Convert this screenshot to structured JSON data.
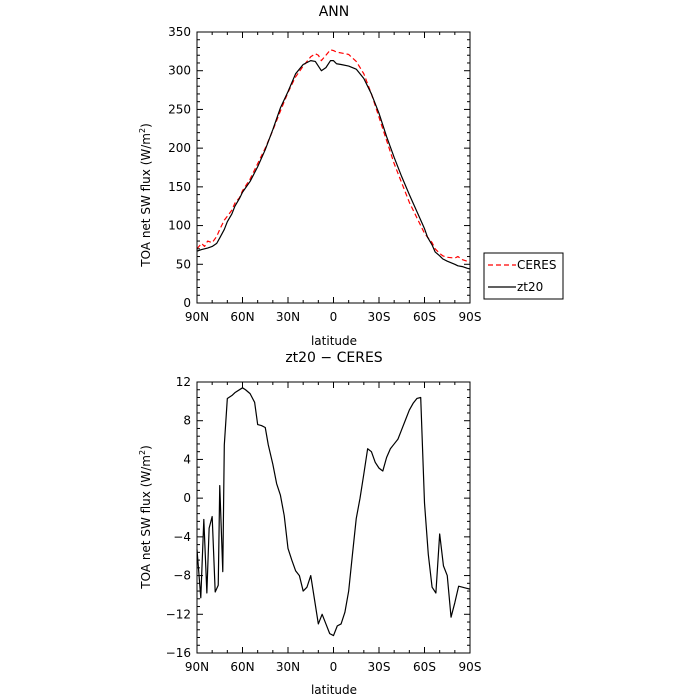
{
  "chart_data": [
    {
      "type": "line",
      "title": "ANN",
      "xlabel": "latitude",
      "ylabel": "TOA net SW flux (W/m²)",
      "xlim": [
        90,
        -90
      ],
      "ylim": [
        0,
        350
      ],
      "xticks": [
        90,
        60,
        30,
        0,
        -30,
        -60,
        -90
      ],
      "xticklabels": [
        "90N",
        "60N",
        "30N",
        "0",
        "30S",
        "60S",
        "90S"
      ],
      "yticks": [
        0,
        50,
        100,
        150,
        200,
        250,
        300,
        350
      ],
      "yticklabels": [
        "0",
        "50",
        "100",
        "150",
        "200",
        "250",
        "300",
        "350"
      ],
      "legend": {
        "position": "right"
      },
      "series": [
        {
          "name": "CERES",
          "color": "#ff0000",
          "dash": "dashed",
          "x": [
            90,
            87,
            85,
            83,
            80,
            77,
            75,
            72,
            70,
            67,
            65,
            62,
            60,
            55,
            50,
            45,
            40,
            35,
            30,
            25,
            20,
            15,
            12,
            10,
            8,
            5,
            2,
            0,
            -2,
            -5,
            -10,
            -15,
            -20,
            -25,
            -30,
            -35,
            -40,
            -45,
            -50,
            -55,
            -60,
            -62,
            -65,
            -67,
            -70,
            -72,
            -75,
            -80,
            -82,
            -85,
            -88,
            -90
          ],
          "y": [
            70,
            77,
            73,
            80,
            78,
            86,
            95,
            107,
            112,
            120,
            129,
            136,
            145,
            160,
            180,
            200,
            223,
            248,
            272,
            292,
            306,
            318,
            322,
            320,
            313,
            320,
            327,
            326,
            324,
            323,
            321,
            312,
            296,
            270,
            240,
            210,
            180,
            155,
            130,
            110,
            90,
            85,
            78,
            70,
            64,
            61,
            59,
            58,
            60,
            56,
            54,
            52
          ]
        },
        {
          "name": "zt20",
          "color": "#000000",
          "dash": "solid",
          "x": [
            90,
            87,
            85,
            83,
            80,
            77,
            75,
            72,
            70,
            67,
            65,
            62,
            60,
            55,
            50,
            45,
            40,
            35,
            30,
            25,
            20,
            15,
            12,
            10,
            8,
            5,
            2,
            0,
            -2,
            -5,
            -10,
            -15,
            -20,
            -25,
            -30,
            -35,
            -40,
            -45,
            -50,
            -55,
            -60,
            -62,
            -65,
            -67,
            -70,
            -72,
            -75,
            -80,
            -82,
            -85,
            -88,
            -90
          ],
          "y": [
            67,
            69,
            70,
            71,
            73,
            77,
            84,
            95,
            105,
            115,
            125,
            135,
            143,
            157,
            176,
            198,
            224,
            252,
            273,
            296,
            308,
            313,
            312,
            306,
            300,
            304,
            313,
            313,
            309,
            308,
            306,
            302,
            290,
            270,
            245,
            215,
            188,
            163,
            140,
            118,
            96,
            85,
            75,
            66,
            61,
            57,
            54,
            50,
            48,
            47,
            45,
            44
          ]
        }
      ]
    },
    {
      "type": "line",
      "title": "zt20 − CERES",
      "xlabel": "latitude",
      "ylabel": "TOA net SW flux (W/m²)",
      "xlim": [
        90,
        -90
      ],
      "ylim": [
        -16,
        12
      ],
      "xticks": [
        90,
        60,
        30,
        0,
        -30,
        -60,
        -90
      ],
      "xticklabels": [
        "90N",
        "60N",
        "30N",
        "0",
        "30S",
        "60S",
        "90S"
      ],
      "yticks": [
        -16,
        -12,
        -8,
        -4,
        0,
        4,
        8,
        12
      ],
      "yticklabels": [
        "−16",
        "−12",
        "−8",
        "−4",
        "0",
        "4",
        "8",
        "12"
      ],
      "series": [
        {
          "color": "#000000",
          "x": [
            90,
            87.5,
            85.5,
            83.5,
            82,
            80,
            78,
            76,
            75,
            73,
            72,
            70,
            67,
            65,
            60,
            58,
            55,
            52,
            50,
            47.5,
            45,
            43,
            40,
            37.5,
            35,
            32.5,
            30,
            27.5,
            25,
            22.5,
            20,
            17.5,
            15,
            12.5,
            10,
            7.5,
            5,
            2.5,
            0,
            -2.5,
            -5,
            -7.5,
            -10,
            -12.5,
            -15,
            -17.5,
            -20,
            -22.5,
            -25,
            -27.5,
            -30,
            -32.5,
            -35,
            -37.5,
            -40,
            -42.5,
            -45,
            -47.5,
            -50,
            -52.5,
            -55,
            -57.5,
            -60,
            -62.5,
            -65,
            -67.5,
            -70,
            -72.5,
            -75,
            -77.5,
            -80,
            -82.5,
            -85,
            -87.5,
            -90
          ],
          "y": [
            -5.3,
            -10.3,
            -2.2,
            -9.8,
            -3.1,
            -1.9,
            -9.7,
            -9.0,
            1.3,
            -7.6,
            5.5,
            10.3,
            10.6,
            10.9,
            11.4,
            11.2,
            10.8,
            9.9,
            7.6,
            7.5,
            7.3,
            5.5,
            3.5,
            1.5,
            0.3,
            -1.8,
            -5.2,
            -6.4,
            -7.5,
            -8.0,
            -9.6,
            -9.2,
            -8.0,
            -10.5,
            -13.0,
            -12.0,
            -13.0,
            -14.0,
            -14.2,
            -13.2,
            -13.0,
            -11.8,
            -9.6,
            -5.8,
            -2.1,
            0.0,
            2.5,
            5.1,
            4.8,
            3.7,
            3.1,
            2.8,
            4.2,
            5.1,
            5.6,
            6.1,
            7.1,
            8.1,
            9.1,
            9.8,
            10.3,
            10.4,
            -0.5,
            -5.8,
            -9.2,
            -9.8,
            -3.7,
            -7.0,
            -8.0,
            -12.3,
            -10.8,
            -9.1,
            -9.2,
            -9.3,
            -9.4
          ]
        }
      ]
    }
  ]
}
